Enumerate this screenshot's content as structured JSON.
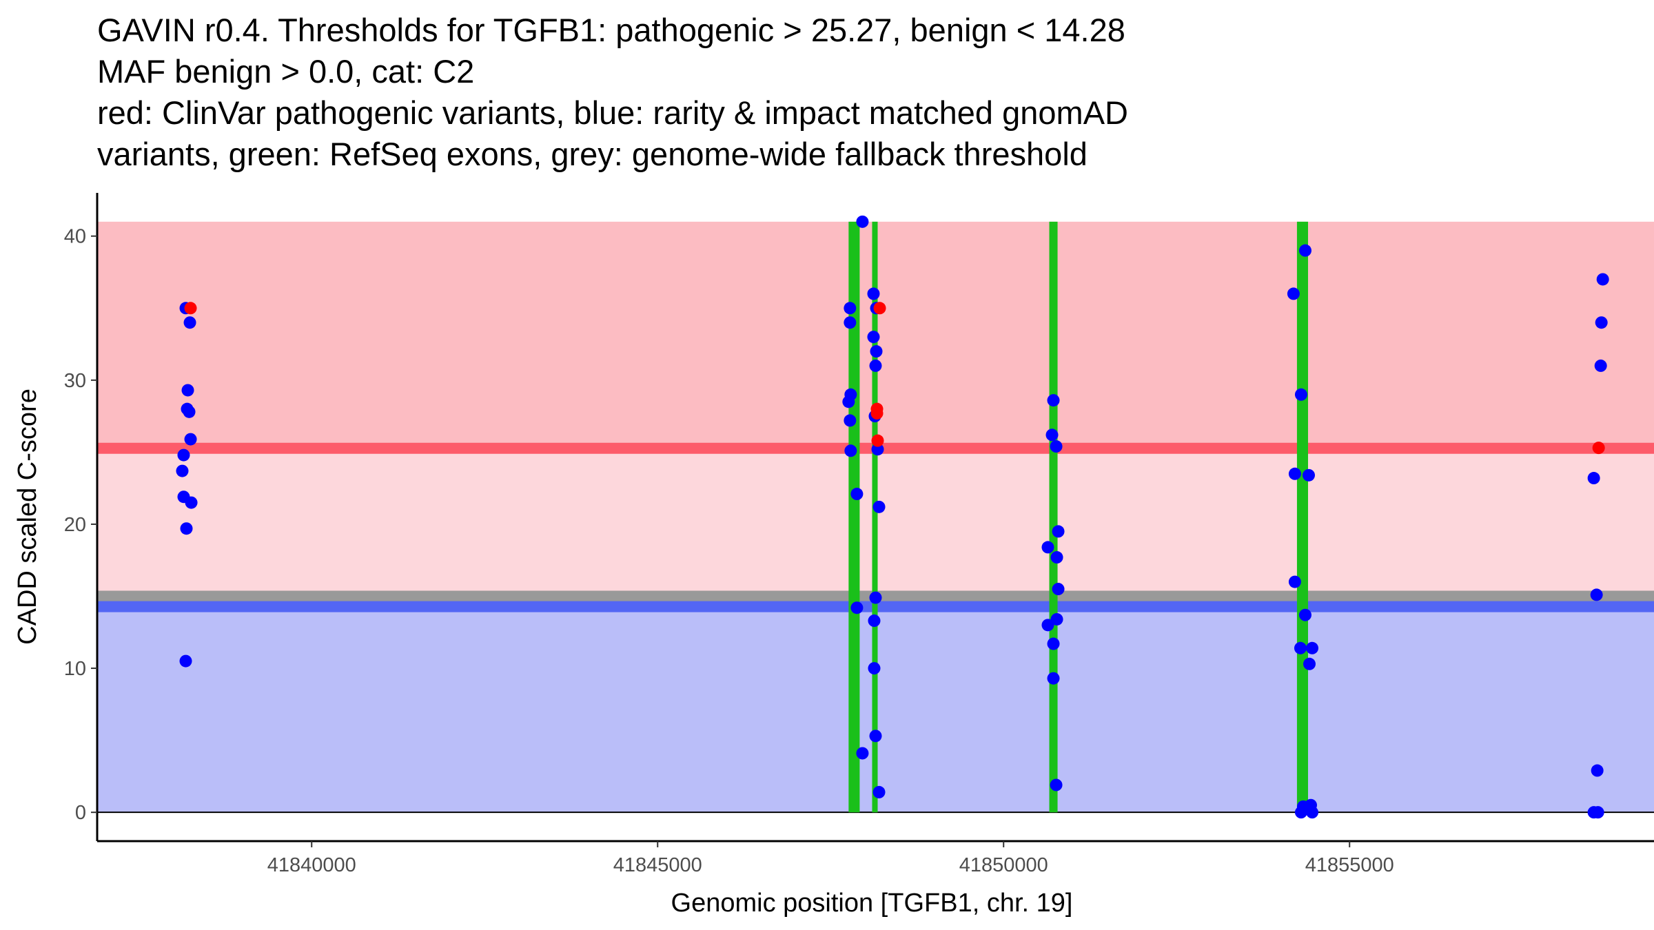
{
  "chart_data": {
    "type": "scatter",
    "title_lines": [
      "GAVIN r0.4. Thresholds for TGFB1: pathogenic > 25.27, benign < 14.28",
      "MAF benign > 0.0, cat: C2",
      "red: ClinVar pathogenic variants, blue: rarity & impact matched gnomAD",
      "variants, green: RefSeq exons, grey: genome-wide fallback threshold"
    ],
    "xlabel": "Genomic position [TGFB1, chr. 19]",
    "ylabel": "CADD scaled C-score",
    "xlim": [
      41836900,
      41859400
    ],
    "ylim": [
      -2,
      43
    ],
    "x_ticks": [
      41840000,
      41845000,
      41850000,
      41855000
    ],
    "x_tick_labels": [
      "41840000",
      "41845000",
      "41850000",
      "41855000"
    ],
    "y_ticks": [
      0,
      10,
      20,
      30,
      40
    ],
    "y_tick_labels": [
      "0",
      "10",
      "20",
      "30",
      "40"
    ],
    "thresholds": {
      "pathogenic": 25.27,
      "benign": 14.28,
      "fallback": 15.0,
      "cadd_max": 41,
      "x_start": 41836900,
      "x_end": 41859400
    },
    "exons": [
      {
        "start": 41847760,
        "end": 41847920
      },
      {
        "start": 41848100,
        "end": 41848180
      },
      {
        "start": 41850660,
        "end": 41850780
      },
      {
        "start": 41854240,
        "end": 41854400
      }
    ],
    "colors": {
      "pathogenic_region": "#fcbcc2",
      "intermediate_region": "#fdd7dc",
      "benign_region": "#babef9",
      "pathogenic_line": "#fd5b6a",
      "benign_line": "#5366f4",
      "fallback_line": "#999999",
      "exon": "#1ac01a",
      "clinvar_point": "#ff0000",
      "gnomad_point": "#0000ff"
    },
    "series": [
      {
        "name": "gnomAD matched variants",
        "color": "#0000ff",
        "points": [
          {
            "x": 41838180,
            "y": 35
          },
          {
            "x": 41838240,
            "y": 34
          },
          {
            "x": 41838210,
            "y": 29.3
          },
          {
            "x": 41838200,
            "y": 28
          },
          {
            "x": 41838230,
            "y": 27.8
          },
          {
            "x": 41838250,
            "y": 25.9
          },
          {
            "x": 41838150,
            "y": 24.8
          },
          {
            "x": 41838130,
            "y": 23.7
          },
          {
            "x": 41838150,
            "y": 21.9
          },
          {
            "x": 41838260,
            "y": 21.5
          },
          {
            "x": 41838190,
            "y": 19.7
          },
          {
            "x": 41838180,
            "y": 10.5
          },
          {
            "x": 41847960,
            "y": 41
          },
          {
            "x": 41847780,
            "y": 35
          },
          {
            "x": 41847780,
            "y": 34
          },
          {
            "x": 41847790,
            "y": 29
          },
          {
            "x": 41847760,
            "y": 28.5
          },
          {
            "x": 41847780,
            "y": 27.2
          },
          {
            "x": 41847790,
            "y": 25.1
          },
          {
            "x": 41847880,
            "y": 22.1
          },
          {
            "x": 41847880,
            "y": 14.2
          },
          {
            "x": 41847960,
            "y": 4.1
          },
          {
            "x": 41848120,
            "y": 36
          },
          {
            "x": 41848160,
            "y": 35
          },
          {
            "x": 41848120,
            "y": 33
          },
          {
            "x": 41848160,
            "y": 32
          },
          {
            "x": 41848150,
            "y": 31
          },
          {
            "x": 41848140,
            "y": 27.5
          },
          {
            "x": 41848180,
            "y": 25.2
          },
          {
            "x": 41848200,
            "y": 21.2
          },
          {
            "x": 41848150,
            "y": 14.9
          },
          {
            "x": 41848130,
            "y": 13.3
          },
          {
            "x": 41848130,
            "y": 10
          },
          {
            "x": 41848150,
            "y": 5.3
          },
          {
            "x": 41848200,
            "y": 1.4
          },
          {
            "x": 41850720,
            "y": 28.6
          },
          {
            "x": 41850700,
            "y": 26.2
          },
          {
            "x": 41850760,
            "y": 25.4
          },
          {
            "x": 41850790,
            "y": 19.5
          },
          {
            "x": 41850640,
            "y": 18.4
          },
          {
            "x": 41850770,
            "y": 17.7
          },
          {
            "x": 41850790,
            "y": 15.5
          },
          {
            "x": 41850770,
            "y": 13.4
          },
          {
            "x": 41850640,
            "y": 13
          },
          {
            "x": 41850720,
            "y": 11.7
          },
          {
            "x": 41850720,
            "y": 9.3
          },
          {
            "x": 41850760,
            "y": 1.9
          },
          {
            "x": 41854360,
            "y": 39
          },
          {
            "x": 41854190,
            "y": 36
          },
          {
            "x": 41854300,
            "y": 29
          },
          {
            "x": 41854210,
            "y": 23.5
          },
          {
            "x": 41854410,
            "y": 23.4
          },
          {
            "x": 41854210,
            "y": 16
          },
          {
            "x": 41854360,
            "y": 13.7
          },
          {
            "x": 41854290,
            "y": 11.4
          },
          {
            "x": 41854460,
            "y": 11.4
          },
          {
            "x": 41854420,
            "y": 10.3
          },
          {
            "x": 41854330,
            "y": 0.4
          },
          {
            "x": 41854440,
            "y": 0.5
          },
          {
            "x": 41854300,
            "y": 0
          },
          {
            "x": 41854460,
            "y": 0
          },
          {
            "x": 41858660,
            "y": 37
          },
          {
            "x": 41858640,
            "y": 34
          },
          {
            "x": 41858630,
            "y": 31
          },
          {
            "x": 41858530,
            "y": 23.2
          },
          {
            "x": 41858570,
            "y": 15.1
          },
          {
            "x": 41858580,
            "y": 2.9
          },
          {
            "x": 41858530,
            "y": 0
          },
          {
            "x": 41858590,
            "y": 0
          }
        ]
      },
      {
        "name": "ClinVar pathogenic variants",
        "color": "#ff0000",
        "points": [
          {
            "x": 41838250,
            "y": 35
          },
          {
            "x": 41848210,
            "y": 35
          },
          {
            "x": 41848170,
            "y": 28
          },
          {
            "x": 41848170,
            "y": 27.7
          },
          {
            "x": 41848180,
            "y": 25.8
          },
          {
            "x": 41858600,
            "y": 25.3
          }
        ]
      }
    ]
  }
}
